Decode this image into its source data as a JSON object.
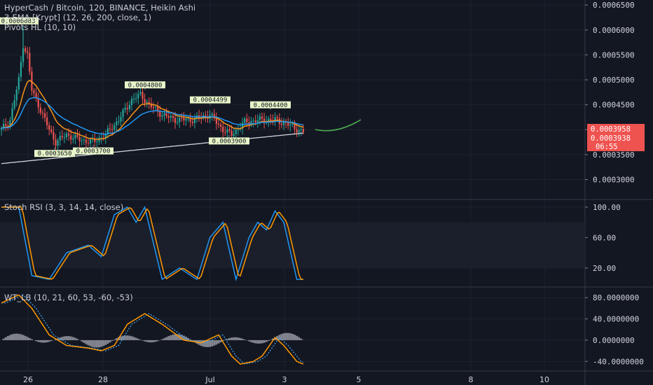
{
  "panels": {
    "main_title": "HyperCash / Bitcoin, 120, BINANCE, Heikin Ashi",
    "ema_title": "3-EMA [Krypt] (12, 26, 200, close, 1)",
    "pivots_title": "Pivots HL (10, 10)",
    "stoch_title": "Stoch RSI (3, 3, 14, 14, close)",
    "wt_title": "WT_LB (10, 21, 60, 53, -60, -53)"
  },
  "colors": {
    "background": "#131722",
    "grid": "#1e222d",
    "up": "#26a69a",
    "down": "#ef5350",
    "ema_fast": "#f7931a",
    "ema_mid": "#2196f3",
    "ema_slow": "#d1d4dc",
    "forecast": "#4caf50",
    "stoch_k": "#2196f3",
    "stoch_d": "#ff9800",
    "wt1": "#ff9800",
    "wt2": "#42a5f5",
    "wt_hist": "#9598a1",
    "price_tag": "#ef5350",
    "pivot_tag": "#e8f5c8"
  },
  "current_price": {
    "last": "0.0003958",
    "close": "0.0003938",
    "countdown": "06:55"
  },
  "chart_data": [
    {
      "type": "candlestick",
      "name": "main",
      "y_tick_labels": [
        "0.0006500",
        "0.0006000",
        "0.0005500",
        "0.0005000",
        "0.0004500",
        "0.0004000",
        "0.0003500",
        "0.0003000"
      ],
      "y_ticks": [
        0.00065,
        0.0006,
        0.00055,
        0.0005,
        0.00045,
        0.0004,
        0.00035,
        0.0003
      ],
      "ylim": [
        0.00026,
        0.00066
      ],
      "x_tick_labels": [
        "26",
        "28",
        "Jul",
        "3",
        "5",
        "8",
        "10"
      ],
      "pivot_labels": [
        "0.0006083",
        "0.0003650",
        "0.0003700",
        "0.0004800",
        "0.0004499",
        "0.0003900",
        "0.0004400"
      ],
      "pivot_values": [
        0.0006083,
        0.000365,
        0.00037,
        0.00048,
        0.0004499,
        0.00039,
        0.00044
      ]
    },
    {
      "type": "line",
      "name": "stoch_rsi",
      "y_tick_labels": [
        "100.00",
        "60.00",
        "20.00"
      ],
      "y_ticks": [
        100,
        60,
        20
      ],
      "band": [
        20,
        80
      ],
      "ylim": [
        -5,
        110
      ]
    },
    {
      "type": "line",
      "name": "wavetrend",
      "y_tick_labels": [
        "80.0000000",
        "40.0000000",
        "0.0000000",
        "-40.0000000"
      ],
      "y_ticks": [
        80,
        40,
        0,
        -40
      ],
      "ylim": [
        -58,
        100
      ]
    }
  ]
}
